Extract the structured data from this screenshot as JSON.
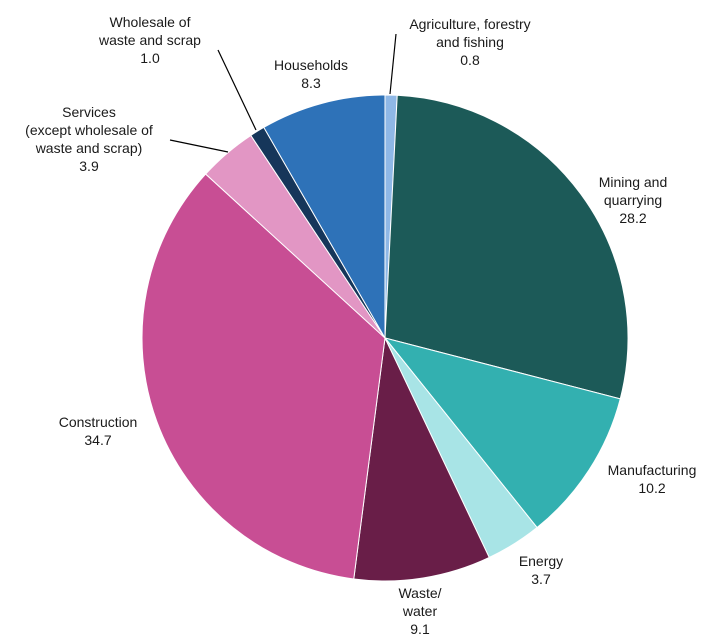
{
  "chart_data": {
    "type": "pie",
    "title": "",
    "start_angle_deg": 90,
    "direction": "clockwise",
    "slices": [
      {
        "label": [
          "Agriculture, forestry",
          "and fishing"
        ],
        "value_text": "0.8",
        "value": 0.8,
        "color": "#8fb8e6"
      },
      {
        "label": [
          "Mining and",
          "quarrying"
        ],
        "value_text": "28.2",
        "value": 28.2,
        "color": "#1c5a58"
      },
      {
        "label": [
          "Manufacturing"
        ],
        "value_text": "10.2",
        "value": 10.2,
        "color": "#33b0b0"
      },
      {
        "label": [
          "Energy"
        ],
        "value_text": "3.7",
        "value": 3.7,
        "color": "#a8e4e6"
      },
      {
        "label": [
          "Waste/",
          "water"
        ],
        "value_text": "9.1",
        "value": 9.1,
        "color": "#691e48"
      },
      {
        "label": [
          "Construction"
        ],
        "value_text": "34.7",
        "value": 34.7,
        "color": "#c84e94"
      },
      {
        "label": [
          "Services",
          "(except wholesale of",
          "waste and scrap)"
        ],
        "value_text": "3.9",
        "value": 3.9,
        "color": "#e296c4"
      },
      {
        "label": [
          "Wholesale of",
          "waste and scrap"
        ],
        "value_text": "1.0",
        "value": 1.0,
        "color": "#16365a"
      },
      {
        "label": [
          "Households"
        ],
        "value_text": "8.3",
        "value": 8.3,
        "color": "#2e72b8"
      }
    ]
  }
}
